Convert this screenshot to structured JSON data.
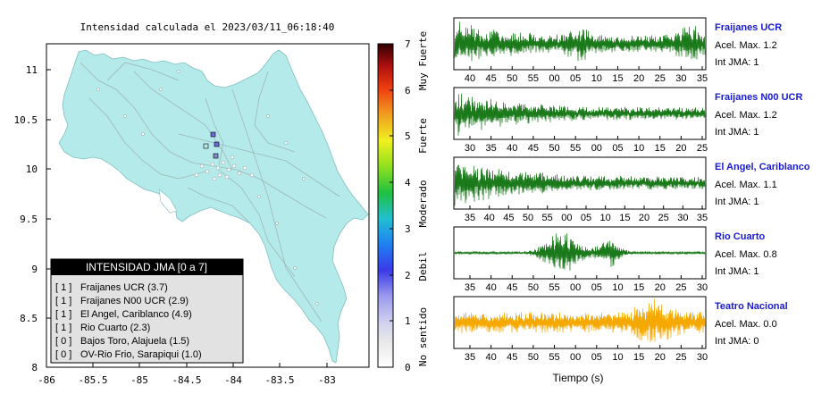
{
  "title": "Intensidad calculada el 2023/03/11_06:18:40",
  "map": {
    "y_ticks": [
      "11",
      "10.5",
      "10",
      "9.5",
      "9",
      "8.5",
      "8"
    ],
    "x_ticks": [
      "-86",
      "-85.5",
      "-85",
      "-84.5",
      "-84",
      "-83.5",
      "-83"
    ],
    "legend_title": "INTENSIDAD JMA [0 a 7]",
    "legend_items": [
      {
        "level": "[ 1 ]",
        "name": "Fraijanes UCR (3.7)"
      },
      {
        "level": "[ 1 ]",
        "name": "Fraijanes N00 UCR (2.9)"
      },
      {
        "level": "[ 1 ]",
        "name": "El Angel, Cariblanco (4.9)"
      },
      {
        "level": "[ 1 ]",
        "name": "Rio Cuarto (2.3)"
      },
      {
        "level": "[ 0 ]",
        "name": "Bajos Toro, Alajuela (1.5)"
      },
      {
        "level": "[ 0 ]",
        "name": "OV-Rio Frio, Sarapiqui (1.0)"
      }
    ]
  },
  "colorbar": {
    "ticks": [
      "7",
      "6",
      "5",
      "4",
      "3",
      "2",
      "1",
      "0"
    ],
    "categories": [
      "Muy Fuerte",
      "Fuerte",
      "Moderado",
      "Debil",
      "No sentido"
    ]
  },
  "traces": [
    {
      "station": "Fraijanes UCR",
      "acel": "Acel. Max. 1.2",
      "jma": "Int JMA: 1",
      "color": "#1a7a1a",
      "ticks": [
        "40",
        "45",
        "50",
        "55",
        "00",
        "05",
        "10",
        "15",
        "20",
        "25",
        "30",
        "35"
      ]
    },
    {
      "station": "Fraijanes N00 UCR",
      "acel": "Acel. Max. 1.2",
      "jma": "Int JMA: 1",
      "color": "#1a7a1a",
      "ticks": [
        "30",
        "35",
        "40",
        "45",
        "50",
        "55",
        "00",
        "05",
        "10",
        "15",
        "20",
        "25"
      ]
    },
    {
      "station": "El Angel, Cariblanco",
      "acel": "Acel. Max. 1.1",
      "jma": "Int JMA: 1",
      "color": "#1a7a1a",
      "ticks": [
        "35",
        "40",
        "45",
        "50",
        "55",
        "00",
        "05",
        "10",
        "15",
        "20",
        "25",
        "30",
        "35"
      ]
    },
    {
      "station": "Rio Cuarto",
      "acel": "Acel. Max. 0.8",
      "jma": "Int JMA: 1",
      "color": "#1a7a1a",
      "ticks": [
        "35",
        "40",
        "45",
        "50",
        "55",
        "00",
        "05",
        "10",
        "15",
        "20",
        "25",
        "30"
      ]
    },
    {
      "station": "Teatro Nacional",
      "acel": "Acel. Max. 0.0",
      "jma": "Int JMA: 0",
      "color": "#f5a800",
      "ticks": [
        "35",
        "40",
        "45",
        "50",
        "55",
        "00",
        "05",
        "10",
        "15",
        "20",
        "25",
        "30"
      ]
    }
  ],
  "xaxis_label": "Tiempo (s)",
  "colors": {
    "land": "#b4eaea",
    "station_blue": "#1a1ad0",
    "legend_header": "#000000"
  }
}
